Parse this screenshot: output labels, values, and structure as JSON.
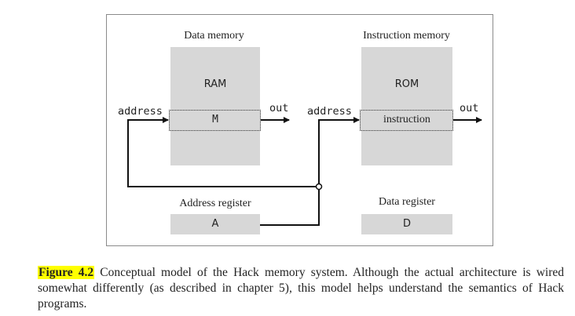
{
  "data_memory": {
    "title": "Data memory",
    "block_label": "RAM",
    "register_label": "M",
    "input_label": "address",
    "output_label": "out"
  },
  "instruction_memory": {
    "title": "Instruction memory",
    "block_label": "ROM",
    "register_label": "instruction",
    "input_label": "address",
    "output_label": "out"
  },
  "address_register": {
    "title": "Address register",
    "value": "A"
  },
  "data_register": {
    "title": "Data register",
    "value": "D"
  },
  "caption": {
    "label": "Figure 4.2",
    "text": " Conceptual model of the Hack memory system. Although the actual architecture is wired somewhat differently (as described in chapter 5), this model helps understand the semantics of Hack programs."
  }
}
